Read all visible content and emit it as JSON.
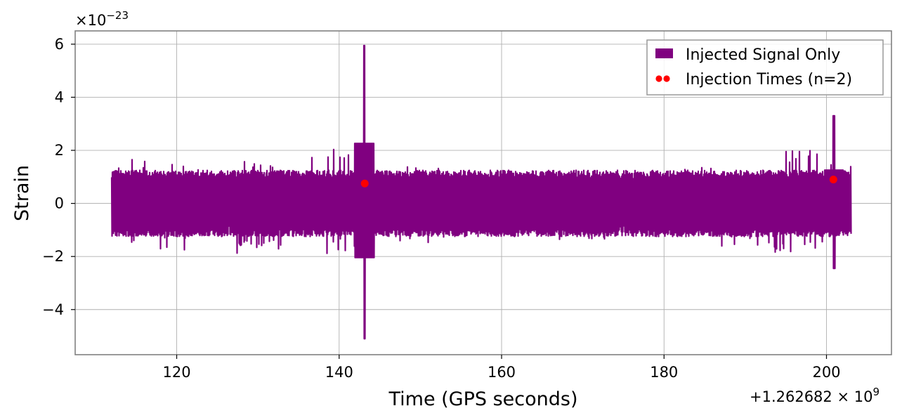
{
  "chart_data": {
    "type": "line",
    "xlabel": "Time (GPS seconds)",
    "ylabel": "Strain",
    "x_offset_label": "+1.262682 × 10",
    "x_offset_exp": "9",
    "y_scale_label": "×10",
    "y_scale_exp": "−23",
    "xlim": [
      107.5,
      208.0
    ],
    "ylim": [
      -5.7,
      6.5
    ],
    "xticks": [
      120,
      140,
      160,
      180,
      200
    ],
    "yticks": [
      6,
      4,
      2,
      0,
      -2,
      -4
    ],
    "ytick_labels": [
      "6",
      "4",
      "2",
      "0",
      "−2",
      "−4"
    ],
    "grid": true,
    "legend_position": "top-right",
    "colors": {
      "signal": "#800080",
      "injection": "#ff0000",
      "grid": "#b0b0b0",
      "frame": "#808080"
    },
    "series": [
      {
        "name": "Injected Signal Only",
        "kind": "line",
        "x_range": [
          112,
          203
        ],
        "baseline_max": 1.2,
        "baseline_min": -1.2,
        "spikes": [
          {
            "x": 143.1,
            "max": 5.95,
            "min": -5.1
          },
          {
            "x": 200.9,
            "max": 3.3,
            "min": -2.45
          }
        ],
        "peaks": [
          [
            115,
            1.7
          ],
          [
            120,
            1.5
          ],
          [
            130,
            1.6
          ],
          [
            138,
            1.9
          ],
          [
            140,
            2.1
          ],
          [
            142.5,
            2.4
          ],
          [
            150,
            1.4
          ],
          [
            170,
            1.3
          ],
          [
            185,
            1.4
          ],
          [
            198,
            2.0
          ],
          [
            202,
            1.5
          ]
        ],
        "troughs": [
          [
            114,
            -1.5
          ],
          [
            120,
            -1.75
          ],
          [
            130,
            -1.9
          ],
          [
            140,
            -1.9
          ],
          [
            142.5,
            -2.2
          ],
          [
            150,
            -1.5
          ],
          [
            170,
            -1.4
          ],
          [
            190,
            -1.7
          ],
          [
            196,
            -1.9
          ],
          [
            202,
            -1.5
          ]
        ]
      },
      {
        "name": "Injection Times (n=2)",
        "kind": "scatter",
        "points": [
          {
            "x": 143.15,
            "y": 0.75
          },
          {
            "x": 200.85,
            "y": 0.9
          }
        ]
      }
    ]
  }
}
